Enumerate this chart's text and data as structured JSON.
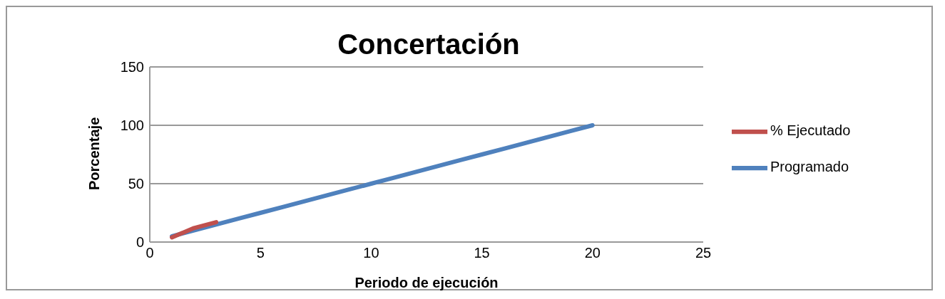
{
  "chart_data": {
    "type": "line",
    "title": "Concertación",
    "xlabel": "Periodo de ejecución",
    "ylabel": "Porcentaje",
    "x": [
      1,
      2,
      3,
      4,
      5,
      6,
      7,
      8,
      9,
      10,
      11,
      12,
      13,
      14,
      15,
      16,
      17,
      18,
      19,
      20
    ],
    "series": [
      {
        "name": "Programado",
        "color": "#4f81bd",
        "values": [
          5,
          10,
          15,
          20,
          25,
          30,
          35,
          40,
          45,
          50,
          55,
          60,
          65,
          70,
          75,
          80,
          85,
          90,
          95,
          100
        ]
      },
      {
        "name": "% Ejecutado",
        "color": "#c0504d",
        "x": [
          1,
          2,
          3
        ],
        "values": [
          4,
          12,
          17
        ]
      }
    ],
    "xlim": [
      0,
      25
    ],
    "xticks": [
      0,
      5,
      10,
      15,
      20,
      25
    ],
    "ylim": [
      0,
      150
    ],
    "yticks": [
      0,
      50,
      100,
      150
    ],
    "grid": "y",
    "legend": "right",
    "marker": "none",
    "line_style": "solid"
  }
}
